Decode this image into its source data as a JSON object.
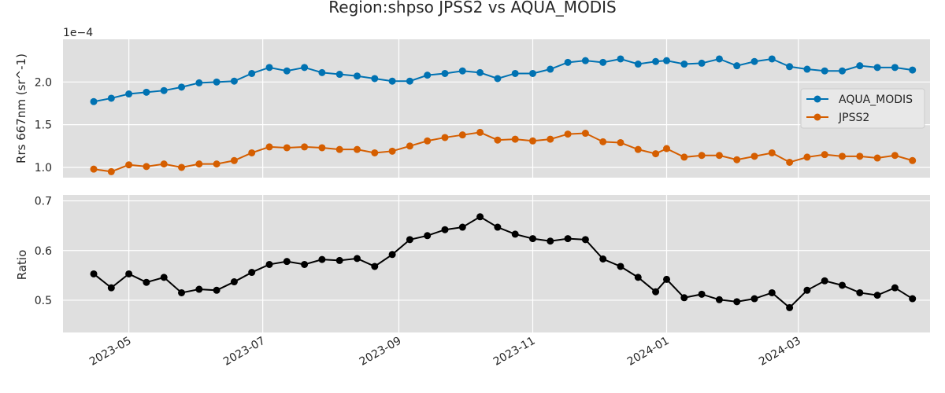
{
  "title": "Region:shpso JPSS2 vs AQUA_MODIS",
  "colors": {
    "panel_bg": "#dfdfdf",
    "grid": "#ffffff",
    "aqua": "#0072b2",
    "jpss2": "#d55e00",
    "ratio": "#000000",
    "text": "#262626"
  },
  "chart_data": [
    {
      "type": "line",
      "ylabel": "Rrs 667nm (sr^-1)",
      "y_offset_label": "1e−4",
      "y_scale_exponent": -4,
      "ylim": [
        0.88,
        2.5
      ],
      "yticks": [
        1.0,
        1.5,
        2.0
      ],
      "ytick_labels": [
        "1.0",
        "1.5",
        "2.0"
      ],
      "grid": true,
      "legend_placement": "center-right",
      "x": [
        "2023-04-15",
        "2023-04-23",
        "2023-05-01",
        "2023-05-09",
        "2023-05-17",
        "2023-05-25",
        "2023-06-02",
        "2023-06-10",
        "2023-06-18",
        "2023-06-26",
        "2023-07-04",
        "2023-07-12",
        "2023-07-20",
        "2023-07-28",
        "2023-08-05",
        "2023-08-13",
        "2023-08-21",
        "2023-08-29",
        "2023-09-06",
        "2023-09-14",
        "2023-09-22",
        "2023-09-30",
        "2023-10-08",
        "2023-10-16",
        "2023-10-24",
        "2023-11-01",
        "2023-11-09",
        "2023-11-17",
        "2023-11-25",
        "2023-12-03",
        "2023-12-11",
        "2023-12-19",
        "2023-12-27",
        "2024-01-01",
        "2024-01-09",
        "2024-01-17",
        "2024-01-25",
        "2024-02-02",
        "2024-02-10",
        "2024-02-18",
        "2024-02-26",
        "2024-03-05",
        "2024-03-13",
        "2024-03-21",
        "2024-03-29",
        "2024-04-06",
        "2024-04-14",
        "2024-04-22"
      ],
      "series": [
        {
          "name": "AQUA_MODIS",
          "color": "#0072b2",
          "values": [
            1.77,
            1.81,
            1.86,
            1.88,
            1.9,
            1.94,
            1.99,
            2.0,
            2.01,
            2.1,
            2.17,
            2.13,
            2.17,
            2.11,
            2.09,
            2.07,
            2.04,
            2.01,
            2.01,
            2.08,
            2.1,
            2.13,
            2.11,
            2.04,
            2.1,
            2.1,
            2.15,
            2.23,
            2.25,
            2.23,
            2.27,
            2.21,
            2.24,
            2.25,
            2.21,
            2.22,
            2.27,
            2.19,
            2.24,
            2.27,
            2.18,
            2.15,
            2.13,
            2.13,
            2.19,
            2.17,
            2.17,
            2.14
          ]
        },
        {
          "name": "JPSS2",
          "color": "#d55e00",
          "values": [
            0.98,
            0.95,
            1.03,
            1.01,
            1.04,
            1.0,
            1.04,
            1.04,
            1.08,
            1.17,
            1.24,
            1.23,
            1.24,
            1.23,
            1.21,
            1.21,
            1.17,
            1.19,
            1.25,
            1.31,
            1.35,
            1.38,
            1.41,
            1.32,
            1.33,
            1.31,
            1.33,
            1.39,
            1.4,
            1.3,
            1.29,
            1.21,
            1.16,
            1.22,
            1.12,
            1.14,
            1.14,
            1.09,
            1.13,
            1.17,
            1.06,
            1.12,
            1.15,
            1.13,
            1.13,
            1.11,
            1.14,
            1.08
          ]
        }
      ]
    },
    {
      "type": "line",
      "ylabel": "Ratio",
      "ylim": [
        0.435,
        0.712
      ],
      "yticks": [
        0.5,
        0.6,
        0.7
      ],
      "ytick_labels": [
        "0.5",
        "0.6",
        "0.7"
      ],
      "grid": true,
      "xtick_labels": [
        "2023-05",
        "2023-07",
        "2023-09",
        "2023-11",
        "2024-01",
        "2024-03"
      ],
      "xtick_dates": [
        "2023-05-01",
        "2023-07-01",
        "2023-09-01",
        "2023-11-01",
        "2024-01-01",
        "2024-03-01"
      ],
      "xlim": [
        "2023-04-01",
        "2024-04-30"
      ],
      "series": [
        {
          "name": "",
          "color": "#000000",
          "values": [
            0.553,
            0.525,
            0.553,
            0.536,
            0.546,
            0.515,
            0.522,
            0.52,
            0.537,
            0.556,
            0.572,
            0.578,
            0.572,
            0.582,
            0.58,
            0.584,
            0.568,
            0.592,
            0.622,
            0.63,
            0.642,
            0.647,
            0.668,
            0.647,
            0.633,
            0.624,
            0.619,
            0.624,
            0.622,
            0.583,
            0.568,
            0.546,
            0.517,
            0.542,
            0.505,
            0.512,
            0.501,
            0.497,
            0.503,
            0.515,
            0.485,
            0.52,
            0.539,
            0.53,
            0.515,
            0.51,
            0.525,
            0.503
          ]
        }
      ]
    }
  ]
}
